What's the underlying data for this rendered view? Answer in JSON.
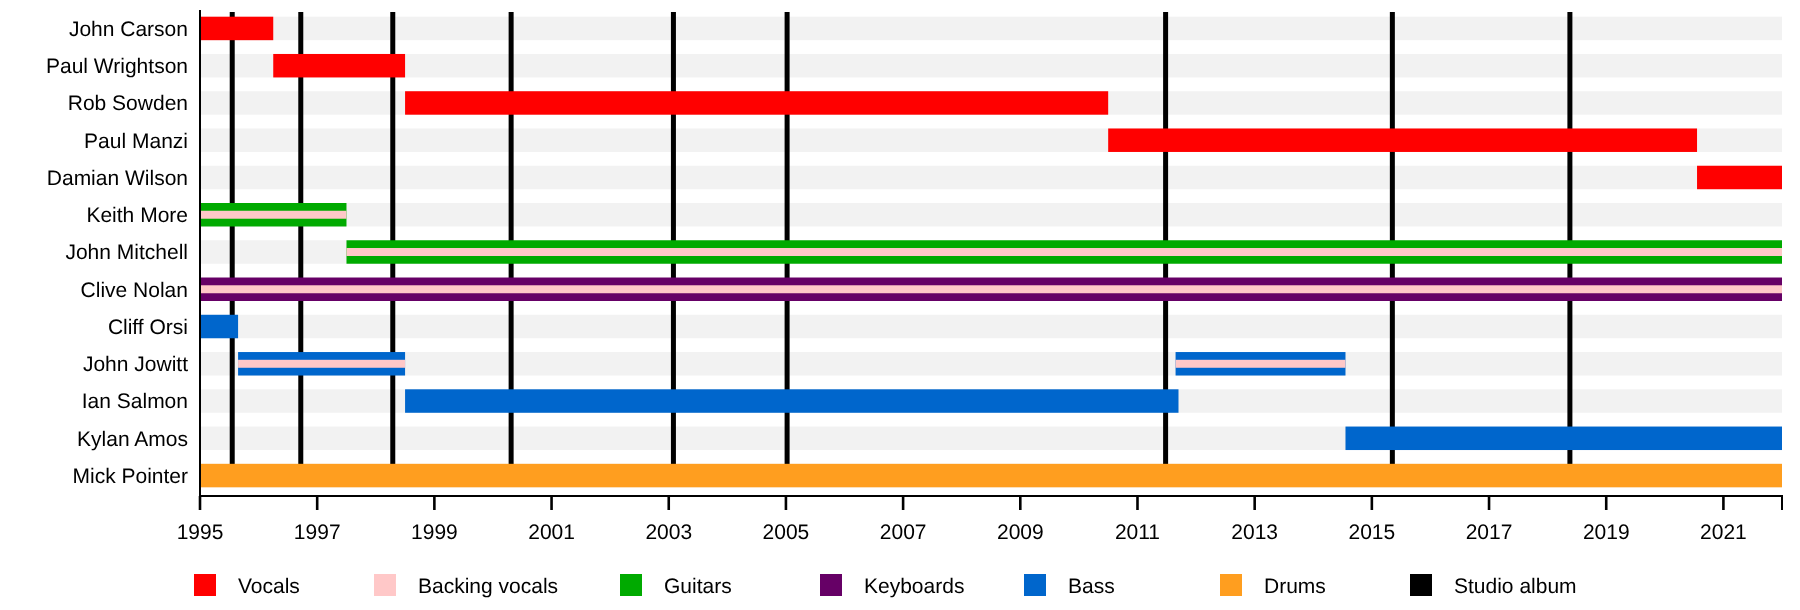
{
  "chart_data": {
    "type": "bar",
    "orientation": "horizontal",
    "categories": [
      "John Carson",
      "Paul Wrightson",
      "Rob Sowden",
      "Paul Manzi",
      "Damian Wilson",
      "Keith More",
      "John Mitchell",
      "Clive Nolan",
      "Cliff Orsi",
      "John Jowitt",
      "Ian Salmon",
      "Kylan Amos",
      "Mick Pointer"
    ],
    "series": [
      {
        "name": "Vocals",
        "color": "#ff0000",
        "base": [
          1995,
          1996.25,
          1998.5,
          2010.5,
          2020.55,
          null,
          null,
          null,
          null,
          null,
          null,
          null,
          null
        ],
        "values": [
          1.25,
          2.25,
          12,
          10.05,
          1.45,
          null,
          null,
          null,
          null,
          null,
          null,
          null,
          null
        ]
      },
      {
        "name": "Backing vocals",
        "color": "#ffc8c8",
        "base": [
          null,
          null,
          null,
          null,
          null,
          1995,
          1997.5,
          1995,
          null,
          1995.65,
          null,
          null,
          null
        ],
        "values": [
          null,
          null,
          null,
          null,
          null,
          2.5,
          24.5,
          27,
          null,
          2.85,
          null,
          null,
          null
        ]
      },
      {
        "name": "Guitars",
        "color": "#00aa00",
        "base": [
          null,
          null,
          null,
          null,
          null,
          1995,
          1997.5,
          null,
          null,
          null,
          null,
          null,
          null
        ],
        "values": [
          null,
          null,
          null,
          null,
          null,
          2.5,
          24.5,
          null,
          null,
          null,
          null,
          null,
          null
        ]
      },
      {
        "name": "Keyboards",
        "color": "#660066",
        "base": [
          null,
          null,
          null,
          null,
          null,
          null,
          null,
          1995,
          null,
          null,
          null,
          null,
          null
        ],
        "values": [
          null,
          null,
          null,
          null,
          null,
          null,
          null,
          27,
          null,
          null,
          null,
          null,
          null
        ]
      },
      {
        "name": "Bass",
        "color": "#0066cc",
        "base": [
          null,
          null,
          null,
          null,
          null,
          null,
          null,
          null,
          1995,
          1995.65,
          1998.5,
          2014.55,
          null
        ],
        "values": [
          null,
          null,
          null,
          null,
          null,
          null,
          null,
          null,
          0.65,
          2.85,
          13.2,
          7.45,
          null
        ]
      },
      {
        "color": "#ffc8c8",
        "base": [
          null,
          null,
          null,
          null,
          null,
          null,
          null,
          null,
          null,
          2011.65,
          null,
          null,
          null
        ],
        "values": [
          null,
          null,
          null,
          null,
          null,
          null,
          null,
          null,
          null,
          2.9,
          null,
          null,
          null
        ]
      },
      {
        "color": "#0066cc",
        "base": [
          null,
          null,
          null,
          null,
          null,
          null,
          null,
          null,
          null,
          2011.65,
          null,
          null,
          null
        ],
        "values": [
          null,
          null,
          null,
          null,
          null,
          null,
          null,
          null,
          null,
          2.9,
          null,
          null,
          null
        ]
      },
      {
        "name": "Drums",
        "color": "#ff9e1f",
        "base": [
          null,
          null,
          null,
          null,
          null,
          null,
          null,
          null,
          null,
          null,
          null,
          null,
          1995
        ],
        "values": [
          null,
          null,
          null,
          null,
          null,
          null,
          null,
          null,
          null,
          null,
          null,
          null,
          27
        ]
      }
    ],
    "ref_lines": [
      {
        "axis": "x",
        "value": 1995.55,
        "label": "Studio album",
        "color": "#000000"
      },
      {
        "axis": "x",
        "value": 1996.72,
        "color": "#000000"
      },
      {
        "axis": "x",
        "value": 1998.29,
        "color": "#000000"
      },
      {
        "axis": "x",
        "value": 2000.31,
        "color": "#000000"
      },
      {
        "axis": "x",
        "value": 2003.08,
        "color": "#000000"
      },
      {
        "axis": "x",
        "value": 2005.02,
        "color": "#000000"
      },
      {
        "axis": "x",
        "value": 2011.48,
        "color": "#000000"
      },
      {
        "axis": "x",
        "value": 2015.35,
        "color": "#000000"
      },
      {
        "axis": "x",
        "value": 2018.38,
        "color": "#000000"
      }
    ],
    "xlim": [
      1995,
      2022
    ],
    "xticks": [
      1995,
      1997,
      1999,
      2001,
      2003,
      2005,
      2007,
      2009,
      2011,
      2013,
      2015,
      2017,
      2019,
      2021
    ],
    "legend": "bottom"
  }
}
